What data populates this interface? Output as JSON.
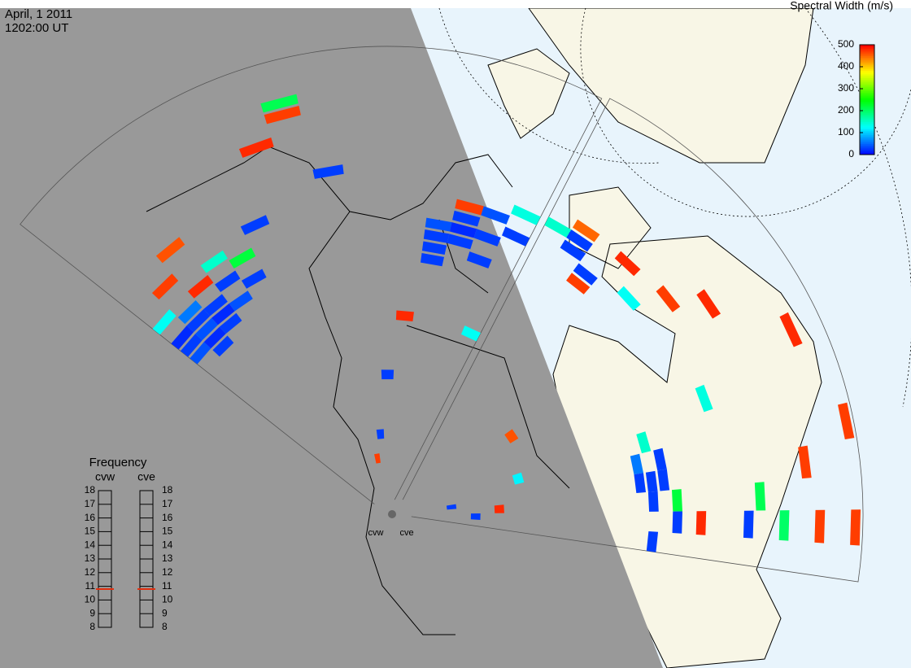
{
  "header": {
    "date": "April, 1 2011",
    "time": "1202:00 UT"
  },
  "colorbar": {
    "title": "Spectral Width (m/s)",
    "range": [
      0,
      500
    ],
    "ticks": [
      0,
      100,
      200,
      300,
      400,
      500
    ],
    "colors": [
      "#0000ff",
      "#00ffff",
      "#00ff00",
      "#ffff00",
      "#ff0000"
    ]
  },
  "frequency": {
    "title": "Frequency",
    "range": [
      8,
      18
    ],
    "ticks": [
      8,
      9,
      10,
      11,
      12,
      13,
      14,
      15,
      16,
      17,
      18
    ],
    "radars": [
      {
        "name": "cvw",
        "value": 10.8
      },
      {
        "name": "cve",
        "value": 10.8
      }
    ]
  },
  "radars": [
    {
      "name": "cvw",
      "cells": [
        [
          0,
          38,
          40
        ],
        [
          0,
          40,
          30
        ],
        [
          0,
          42,
          20
        ],
        [
          1,
          36,
          30
        ],
        [
          1,
          38,
          20
        ],
        [
          1,
          40,
          40
        ],
        [
          1,
          42,
          30
        ],
        [
          1,
          44,
          60
        ],
        [
          2,
          38,
          30
        ],
        [
          2,
          40,
          20
        ],
        [
          2,
          42,
          30
        ],
        [
          2,
          46,
          480
        ],
        [
          3,
          40,
          40
        ],
        [
          3,
          44,
          30
        ],
        [
          3,
          48,
          150
        ],
        [
          0,
          46,
          130
        ],
        [
          1,
          50,
          470
        ],
        [
          2,
          54,
          460
        ],
        [
          4,
          42,
          30
        ],
        [
          4,
          46,
          220
        ],
        [
          5,
          50,
          30
        ],
        [
          6,
          62,
          480
        ],
        [
          7,
          66,
          470
        ],
        [
          7,
          68,
          210
        ],
        [
          8,
          55,
          30
        ],
        [
          12,
          40,
          30
        ],
        [
          12,
          42,
          30
        ],
        [
          12,
          44,
          30
        ],
        [
          12,
          46,
          40
        ],
        [
          13,
          44,
          30
        ],
        [
          13,
          46,
          20
        ],
        [
          13,
          48,
          30
        ],
        [
          13,
          50,
          470
        ],
        [
          14,
          42,
          30
        ],
        [
          14,
          46,
          30
        ],
        [
          14,
          50,
          40
        ],
        [
          15,
          48,
          30
        ],
        [
          15,
          52,
          140
        ],
        [
          15,
          30,
          130
        ],
        [
          11,
          30,
          480
        ],
        [
          10,
          20,
          30
        ],
        [
          9,
          10,
          30
        ],
        [
          8,
          6,
          470
        ]
      ]
    },
    {
      "name": "cve",
      "cells": [
        [
          0,
          52,
          150
        ],
        [
          1,
          50,
          30
        ],
        [
          1,
          52,
          30
        ],
        [
          1,
          54,
          450
        ],
        [
          2,
          48,
          30
        ],
        [
          2,
          46,
          470
        ],
        [
          3,
          54,
          480
        ],
        [
          4,
          50,
          130
        ],
        [
          5,
          55,
          470
        ],
        [
          6,
          60,
          480
        ],
        [
          10,
          40,
          150
        ],
        [
          11,
          38,
          60
        ],
        [
          11,
          42,
          30
        ],
        [
          12,
          38,
          30
        ],
        [
          12,
          40,
          30
        ],
        [
          12,
          42,
          30
        ],
        [
          13,
          44,
          220
        ],
        [
          13,
          40,
          30
        ],
        [
          14,
          44,
          30
        ],
        [
          14,
          48,
          480
        ],
        [
          14,
          56,
          30
        ],
        [
          14,
          62,
          200
        ],
        [
          14,
          68,
          470
        ],
        [
          14,
          74,
          470
        ],
        [
          15,
          40,
          30
        ],
        [
          13,
          58,
          210
        ],
        [
          12,
          66,
          470
        ],
        [
          11,
          74,
          470
        ],
        [
          8,
          70,
          480
        ],
        [
          9,
          52,
          140
        ],
        [
          6,
          20,
          460
        ],
        [
          10,
          18,
          120
        ],
        [
          13,
          14,
          480
        ],
        [
          14,
          10,
          30
        ],
        [
          12,
          6,
          30
        ]
      ]
    }
  ]
}
